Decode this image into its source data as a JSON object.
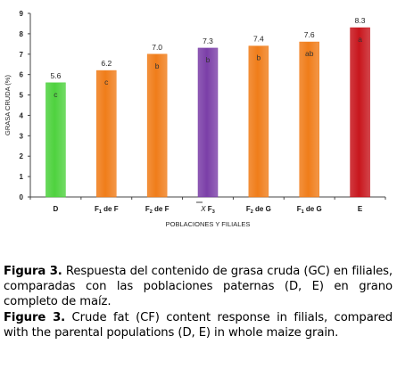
{
  "chart_data": {
    "type": "bar",
    "categories": [
      "D",
      "F1 de F",
      "F2 de F",
      "X F3",
      "F2 de G",
      "F1 de G",
      "E"
    ],
    "category_labels": [
      {
        "main": "D",
        "sub": "",
        "rest": ""
      },
      {
        "main": "F",
        "sub": "1",
        "rest": " de F"
      },
      {
        "main": "F",
        "sub": "2",
        "rest": " de F"
      },
      {
        "main": "X",
        "sub": "",
        "rest": " F",
        "sub2": "3",
        "bar_over": true
      },
      {
        "main": "F",
        "sub": "2",
        "rest": " de G"
      },
      {
        "main": "F",
        "sub": "1",
        "rest": " de G"
      },
      {
        "main": "E",
        "sub": "",
        "rest": ""
      }
    ],
    "values": [
      5.6,
      6.2,
      7.0,
      7.3,
      7.4,
      7.6,
      8.3
    ],
    "value_labels": [
      "5.6",
      "6.2",
      "7.0",
      "7.3",
      "7.4",
      "7.6",
      "8.3"
    ],
    "significance_letters": [
      "c",
      "c",
      "b",
      "b",
      "b",
      "ab",
      "a"
    ],
    "bar_colors": [
      "#4fd23f",
      "#f07d1a",
      "#f07d1a",
      "#7b3fa8",
      "#f07d1a",
      "#f07d1a",
      "#c8161d"
    ],
    "ylabel": "GRASA CRUDA (%)",
    "xlabel": "POBLACIONES Y FILIALES",
    "ylim": [
      0,
      9
    ],
    "yticks": [
      "0",
      "1",
      "2",
      "3",
      "4",
      "5",
      "6",
      "7",
      "8",
      "9"
    ],
    "grid": false
  },
  "captions": {
    "es_label": "Figura 3.",
    "es_text": " Respuesta del contenido de grasa cruda (GC) en filiales, comparadas con las poblaciones paternas (D, E) en grano completo de maíz.",
    "en_label": "Figure 3.",
    "en_text": " Crude fat (CF) content response in filials, compared with the parental populations (D, E) in whole maize grain."
  }
}
